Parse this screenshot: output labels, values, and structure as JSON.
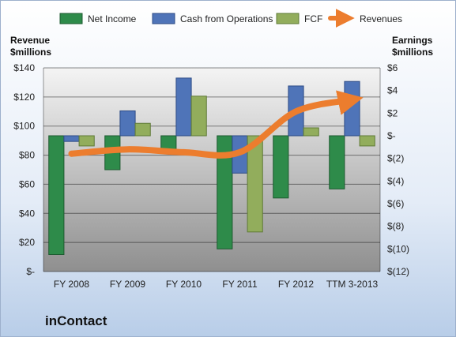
{
  "company": "inContact",
  "chart_data": {
    "type": "bar",
    "categories": [
      "FY 2008",
      "FY 2009",
      "FY 2010",
      "FY 2011",
      "FY 2012",
      "TTM 3-2013"
    ],
    "left_axis": {
      "label_line1": "Revenue",
      "label_line2": "$millions",
      "ylim": [
        0,
        140
      ],
      "ticks": [
        {
          "value": 0,
          "label": "$-"
        },
        {
          "value": 20,
          "label": "$20"
        },
        {
          "value": 40,
          "label": "$40"
        },
        {
          "value": 60,
          "label": "$60"
        },
        {
          "value": 80,
          "label": "$80"
        },
        {
          "value": 100,
          "label": "$100"
        },
        {
          "value": 120,
          "label": "$120"
        },
        {
          "value": 140,
          "label": "$140"
        }
      ]
    },
    "right_axis": {
      "label_line1": "Earnings",
      "label_line2": "$millions",
      "ylim": [
        -12,
        6
      ],
      "ticks": [
        {
          "value": 6,
          "label": "$6"
        },
        {
          "value": 4,
          "label": "$4"
        },
        {
          "value": 2,
          "label": "$2"
        },
        {
          "value": 0,
          "label": "$-"
        },
        {
          "value": -2,
          "label": "$(2)"
        },
        {
          "value": -4,
          "label": "$(4)"
        },
        {
          "value": -6,
          "label": "$(6)"
        },
        {
          "value": -8,
          "label": "$(8)"
        },
        {
          "value": -10,
          "label": "$(10)"
        },
        {
          "value": -12,
          "label": "$(12)"
        }
      ]
    },
    "series": [
      {
        "name": "Net Income",
        "axis": "right",
        "kind": "bar",
        "color": "#2e8b4a",
        "values": [
          -10.5,
          -3.0,
          -1.5,
          -10.0,
          -5.5,
          -4.7
        ]
      },
      {
        "name": "Cash from Operations",
        "axis": "right",
        "kind": "bar",
        "color": "#4f74b8",
        "values": [
          -0.5,
          2.2,
          5.1,
          -3.3,
          4.4,
          4.8
        ]
      },
      {
        "name": "FCF",
        "axis": "right",
        "kind": "bar",
        "color": "#92ad5c",
        "values": [
          -0.9,
          1.1,
          3.5,
          -8.5,
          0.7,
          -0.9
        ]
      },
      {
        "name": "Revenues",
        "axis": "left",
        "kind": "line",
        "color": "#ec7d2e",
        "values": [
          81,
          84,
          82,
          82,
          110,
          118
        ]
      }
    ],
    "legend_position": "top",
    "grid": true
  }
}
